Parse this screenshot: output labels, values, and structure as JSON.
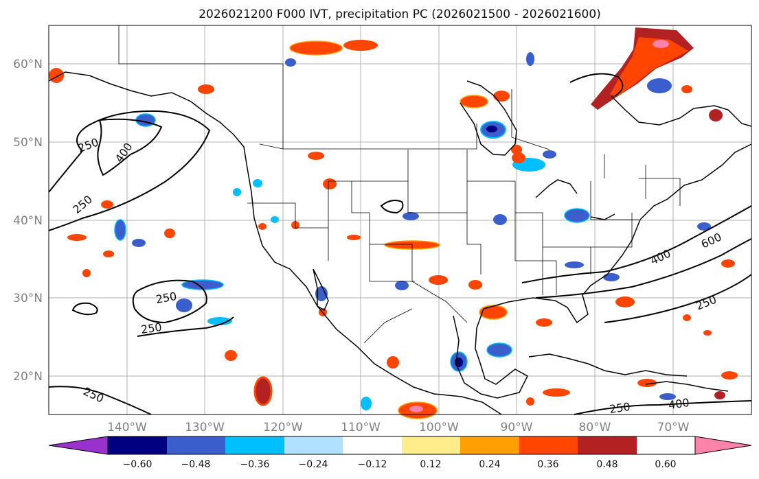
{
  "map": {
    "title": "2026021200 F000 IVT, precipitation PC (2026021500 - 2026021600)",
    "lat_labels": [
      "60°N",
      "50°N",
      "40°N",
      "30°N",
      "20°N"
    ],
    "lon_labels": [
      "140°W",
      "130°W",
      "120°W",
      "110°W",
      "100°W",
      "90°W",
      "80°W",
      "70°W"
    ]
  },
  "colorbar": {
    "ticks": [
      "−0.60",
      "−0.48",
      "−0.36",
      "−0.24",
      "−0.12",
      "0.12",
      "0.24",
      "0.36",
      "0.48",
      "0.60"
    ],
    "colors": [
      "#9932cc",
      "#000080",
      "#3a5fcd",
      "#00bfff",
      "#b0e2ff",
      "#ffffff",
      "#ffec8b",
      "#ff9f00",
      "#ff4500",
      "#b22222",
      "#ff82ab"
    ]
  },
  "contour_labels": {
    "c1": "250",
    "c2": "400",
    "c3": "250",
    "c4": "250",
    "c5": "250",
    "c6": "250",
    "c7": "400",
    "c8": "600",
    "c9": "250",
    "c10": "250",
    "c11": "400"
  }
}
